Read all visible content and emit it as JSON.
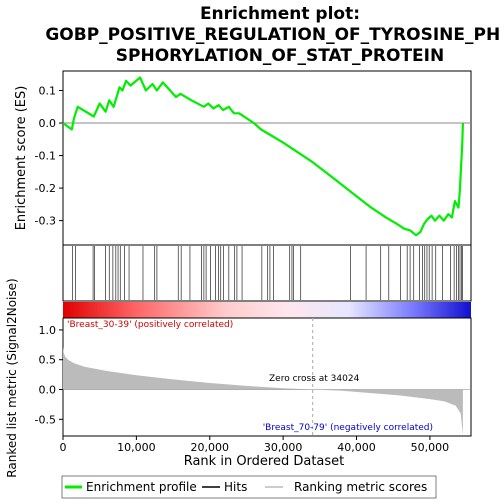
{
  "chart_data": {
    "type": "line",
    "title_lines": [
      "Enrichment plot:",
      "GOBP_POSITIVE_REGULATION_OF_TYROSINE_PHO",
      "SPHORYLATION_OF_STAT_PROTEIN"
    ],
    "es_panel": {
      "ylabel": "Enrichment score (ES)",
      "ylim": [
        -0.375,
        0.16
      ],
      "yticks": [
        0.1,
        0.0,
        -0.1,
        -0.2,
        -0.3
      ],
      "ytick_labels": [
        "0.1",
        "0.0",
        "-0.1",
        "-0.2",
        "-0.3"
      ],
      "series": [
        {
          "name": "Enrichment profile",
          "color": "#00ee00",
          "x": [
            0,
            1200,
            1500,
            2000,
            4200,
            5000,
            5800,
            6300,
            6900,
            7300,
            7700,
            8100,
            8600,
            9200,
            10500,
            11300,
            12200,
            12800,
            13600,
            15400,
            16000,
            17500,
            19200,
            19800,
            20500,
            21200,
            21800,
            22600,
            23300,
            24000,
            26000,
            27000,
            28500,
            30000,
            32000,
            34000,
            36000,
            38000,
            40000,
            42000,
            44000,
            45500,
            46500,
            47300,
            48100,
            48700,
            49200,
            49700,
            50200,
            50700,
            51300,
            51900,
            52500,
            53000,
            53400,
            53900,
            54100,
            54250,
            54400,
            54500
          ],
          "y": [
            0.0,
            -0.02,
            0.015,
            0.05,
            0.02,
            0.06,
            0.035,
            0.07,
            0.05,
            0.08,
            0.11,
            0.1,
            0.13,
            0.115,
            0.14,
            0.1,
            0.12,
            0.1,
            0.125,
            0.08,
            0.09,
            0.07,
            0.05,
            0.06,
            0.045,
            0.055,
            0.04,
            0.05,
            0.03,
            0.03,
            0.0,
            -0.02,
            -0.04,
            -0.06,
            -0.09,
            -0.12,
            -0.155,
            -0.19,
            -0.225,
            -0.26,
            -0.29,
            -0.31,
            -0.325,
            -0.33,
            -0.345,
            -0.335,
            -0.31,
            -0.295,
            -0.285,
            -0.3,
            -0.285,
            -0.3,
            -0.28,
            -0.29,
            -0.24,
            -0.26,
            -0.2,
            -0.13,
            -0.07,
            0.0
          ]
        }
      ]
    },
    "hits": {
      "positions": [
        1300,
        1700,
        4100,
        4300,
        5800,
        6300,
        6800,
        7200,
        7500,
        7800,
        8400,
        9000,
        10900,
        12500,
        12800,
        15700,
        16100,
        17300,
        18900,
        19200,
        19500,
        20100,
        20800,
        21200,
        21500,
        21900,
        22600,
        23400,
        23700,
        24400,
        27100,
        27900,
        28200,
        28700,
        30900,
        31200,
        31400,
        32400,
        39200,
        41300,
        43300,
        44400,
        46000,
        46900,
        47300,
        47800,
        48600,
        49000,
        49300,
        49600,
        49900,
        50300,
        50800,
        51700,
        52800,
        53300,
        53600,
        53900,
        54100,
        54300,
        54450
      ]
    },
    "metric_panel": {
      "ylabel": "Ranked list metric (Signal2Noise)",
      "ylim": [
        -0.78,
        1.2
      ],
      "yticks": [
        1.0,
        0.5,
        0.0,
        -0.5
      ],
      "ytick_labels": [
        "1.0",
        "0.5",
        "0.0",
        "-0.5"
      ],
      "zero_cross_label": "Zero cross at 34024",
      "zero_cross": 34024,
      "positive_label": "'Breast_30-39' (positively correlated)",
      "negative_label": "'Breast_70-79' (negatively correlated)",
      "x": [
        0,
        100,
        300,
        700,
        1500,
        3000,
        6000,
        10000,
        15000,
        20000,
        25000,
        30000,
        34024,
        38000,
        42000,
        46000,
        50000,
        52000,
        53500,
        54200,
        54500
      ],
      "y": [
        0.72,
        0.62,
        0.55,
        0.5,
        0.44,
        0.38,
        0.31,
        0.24,
        0.17,
        0.11,
        0.06,
        0.02,
        0.0,
        -0.02,
        -0.06,
        -0.1,
        -0.16,
        -0.2,
        -0.27,
        -0.4,
        -0.77
      ]
    },
    "xaxis": {
      "label": "Rank in Ordered Dataset",
      "xlim": [
        0,
        55600
      ],
      "ticks": [
        0,
        10000,
        20000,
        30000,
        40000,
        50000
      ],
      "tick_labels": [
        "0",
        "10,000",
        "20,000",
        "30,000",
        "40,000",
        "50,000"
      ]
    },
    "legend": {
      "placement": "bottom",
      "entries": [
        {
          "label": "Enrichment profile",
          "color": "#00ee00"
        },
        {
          "label": "Hits",
          "color": "#000000"
        },
        {
          "label": "Ranking metric scores",
          "color": "#bbbbbb"
        }
      ]
    }
  }
}
